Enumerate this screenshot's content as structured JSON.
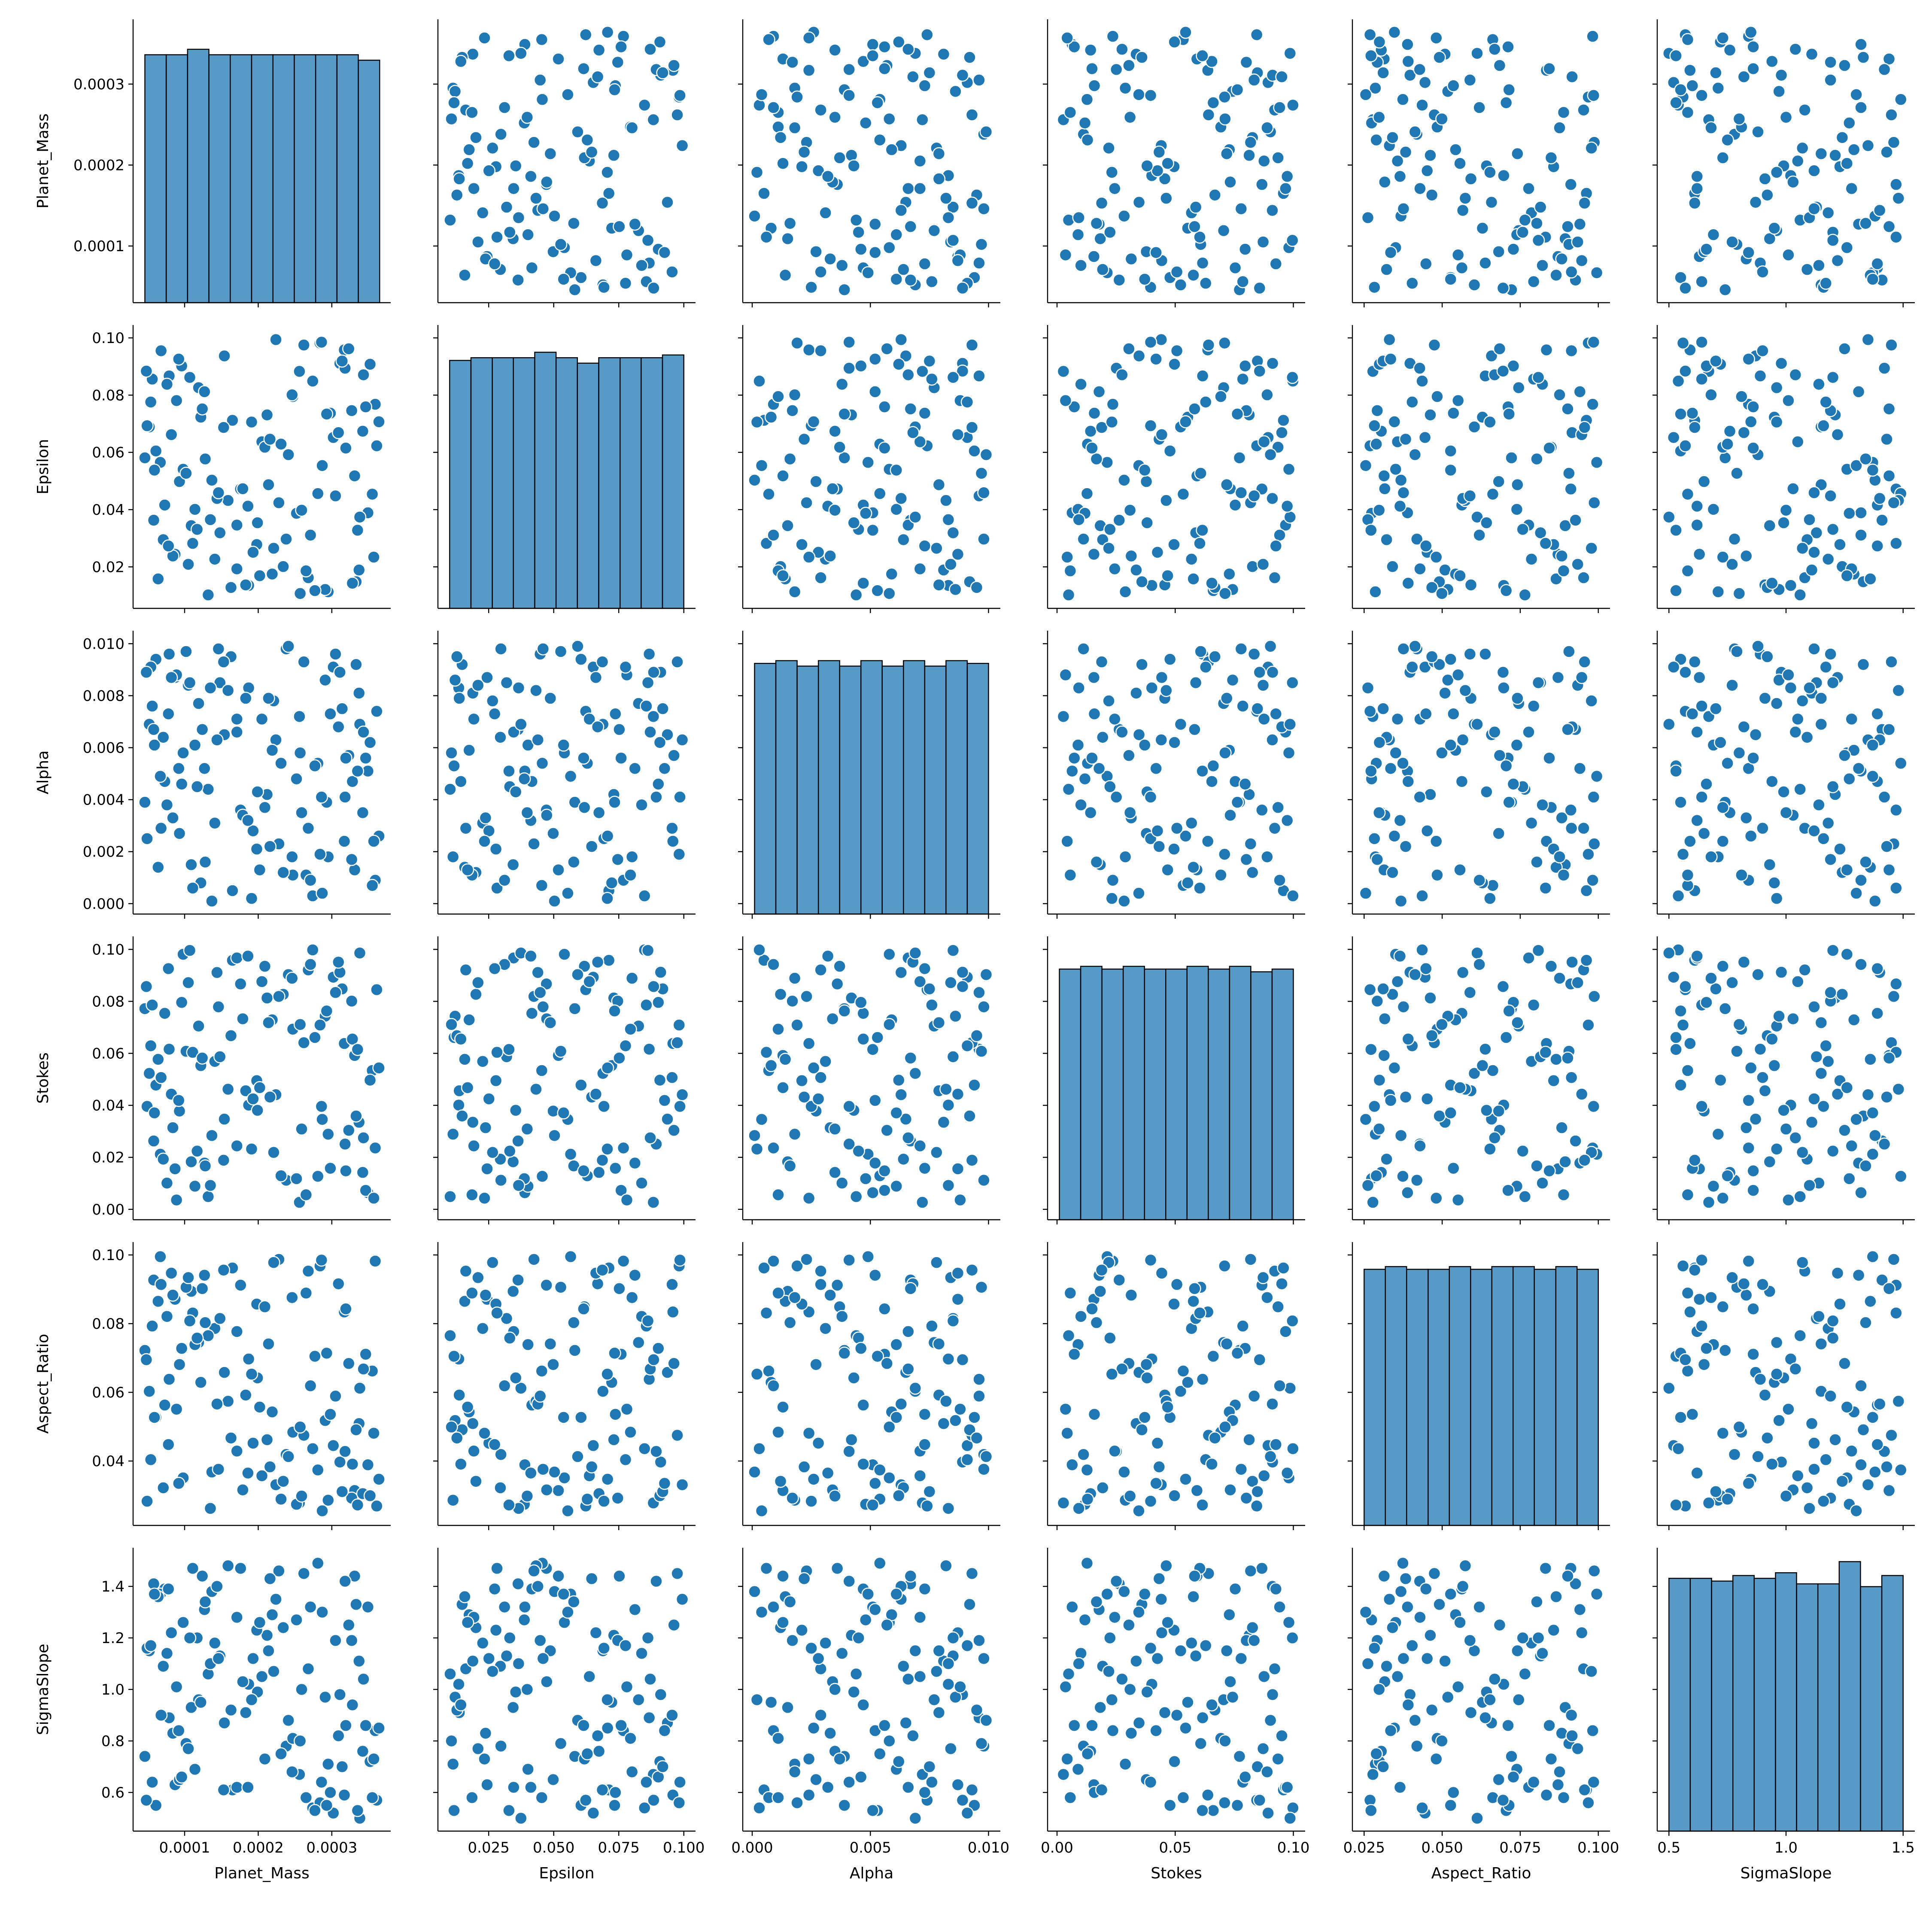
{
  "chart_data": {
    "type": "pairplot",
    "color": "#1f77b4",
    "variables": [
      {
        "name": "Planet_Mass",
        "lim": [
          3e-05,
          0.00038
        ],
        "ticks": [
          0.0001,
          0.0002,
          0.0003
        ],
        "bins": [
          4.6e-05,
          7.5e-05,
          0.000104,
          0.000133,
          0.000162,
          0.000191,
          0.00022,
          0.000249,
          0.000278,
          0.000307,
          0.000336,
          0.000365
        ],
        "counts": [
          91,
          91,
          93,
          91,
          91,
          91,
          91,
          91,
          91,
          91,
          89
        ],
        "count_lim": [
          0,
          104
        ]
      },
      {
        "name": "Epsilon",
        "lim": [
          0.0055,
          0.1045
        ],
        "ticks": [
          0.02,
          0.04,
          0.06,
          0.08,
          {
            "value": 0.1,
            "label": "0.10"
          }
        ],
        "xticks": [
          0.025,
          {
            "value": 0.05,
            "label": "0.050"
          },
          0.075,
          {
            "value": 0.1,
            "label": "0.100"
          }
        ],
        "bins": [
          0.01,
          0.0182,
          0.0264,
          0.0345,
          0.0427,
          0.0509,
          0.0591,
          0.0673,
          0.0755,
          0.0836,
          0.0918,
          0.1
        ],
        "counts": [
          91,
          92,
          92,
          92,
          94,
          92,
          90,
          92,
          92,
          92,
          93
        ],
        "count_lim": [
          0,
          104
        ]
      },
      {
        "name": "Alpha",
        "lim": [
          -0.0004,
          0.0105
        ],
        "ticks": [
          {
            "value": 0,
            "label": "0.000"
          },
          0.002,
          0.004,
          0.006,
          0.008,
          {
            "value": 0.01,
            "label": "0.010"
          }
        ],
        "xticks": [
          {
            "value": 0,
            "label": "0.000"
          },
          0.005,
          {
            "value": 0.01,
            "label": "0.010"
          }
        ],
        "bins": [
          0.0001,
          0.001,
          0.0019,
          0.0028,
          0.0037,
          0.0046,
          0.0055,
          0.0064,
          0.0073,
          0.0082,
          0.0091,
          0.01
        ],
        "counts": [
          92,
          93,
          91,
          93,
          91,
          93,
          91,
          93,
          91,
          93,
          92
        ],
        "count_lim": [
          0,
          104
        ]
      },
      {
        "name": "Stokes",
        "lim": [
          -0.004,
          0.105
        ],
        "ticks": [
          {
            "value": 0,
            "label": "0.00"
          },
          0.02,
          0.04,
          0.06,
          0.08,
          {
            "value": 0.1,
            "label": "0.10"
          }
        ],
        "xticks": [
          {
            "value": 0,
            "label": "0.00"
          },
          0.05,
          {
            "value": 0.1,
            "label": "0.10"
          }
        ],
        "bins": [
          0.001,
          0.01,
          0.019,
          0.028,
          0.037,
          0.046,
          0.055,
          0.064,
          0.073,
          0.082,
          0.091,
          0.1
        ],
        "counts": [
          92,
          93,
          92,
          93,
          92,
          92,
          93,
          92,
          93,
          91,
          92
        ],
        "count_lim": [
          0,
          104
        ]
      },
      {
        "name": "Aspect_Ratio",
        "lim": [
          0.02125,
          0.10375
        ],
        "ticks": [
          0.04,
          0.06,
          0.08,
          {
            "value": 0.1,
            "label": "0.10"
          }
        ],
        "xticks": [
          0.025,
          {
            "value": 0.05,
            "label": "0.050"
          },
          0.075,
          {
            "value": 0.1,
            "label": "0.100"
          }
        ],
        "bins": [
          0.025,
          0.0318,
          0.0386,
          0.0455,
          0.0523,
          0.0591,
          0.0659,
          0.0727,
          0.0795,
          0.0864,
          0.0932,
          0.1
        ],
        "counts": [
          94,
          95,
          94,
          94,
          95,
          94,
          95,
          95,
          94,
          95,
          94
        ],
        "count_lim": [
          0,
          104
        ]
      },
      {
        "name": "SigmaSlope",
        "lim": [
          0.45,
          1.55
        ],
        "ticks": [
          0.6,
          0.8,
          {
            "value": 1,
            "label": "1.0"
          },
          1.2,
          1.4
        ],
        "xticks": [
          0.5,
          {
            "value": 1,
            "label": "1.0"
          },
          1.5
        ],
        "bins": [
          0.5,
          0.591,
          0.682,
          0.773,
          0.864,
          0.955,
          1.045,
          1.136,
          1.227,
          1.318,
          1.409,
          1.5
        ],
        "counts": [
          91,
          91,
          90,
          92,
          91,
          93,
          89,
          89,
          97,
          88,
          92
        ],
        "count_lim": [
          0,
          102
        ]
      }
    ],
    "data": [
      [
        0.000212,
        0.0731,
        0.0042,
        0.0813,
        0.0462,
        1.21
      ],
      [
        8.7e-05,
        0.0244,
        0.0087,
        0.0156,
        0.0871,
        0.63
      ],
      [
        0.000331,
        0.0518,
        0.0013,
        0.0592,
        0.0314,
        1.44
      ],
      [
        0.000154,
        0.0937,
        0.0065,
        0.0347,
        0.0658,
        0.87
      ],
      [
        0.000268,
        0.0162,
        0.0029,
        0.0921,
        0.0953,
        1.08
      ],
      [
        6.1e-05,
        0.0605,
        0.0094,
        0.0478,
        0.0527,
        0.55
      ],
      [
        0.000349,
        0.0389,
        0.0051,
        0.0064,
        0.0389,
        1.32
      ],
      [
        0.000119,
        0.0826,
        0.0077,
        0.0705,
        0.0745,
        0.96
      ],
      [
        0.000295,
        0.0113,
        0.0018,
        0.0289,
        0.0286,
        0.71
      ],
      [
        0.000176,
        0.0472,
        0.0036,
        0.0867,
        0.0912,
        1.47
      ],
      [
        5.2e-05,
        0.0689,
        0.0069,
        0.0523,
        0.0603,
        1.15
      ],
      [
        0.000238,
        0.0297,
        0.0098,
        0.0112,
        0.0419,
        0.78
      ],
      [
        0.000317,
        0.0958,
        0.0024,
        0.0638,
        0.0834,
        0.59
      ],
      [
        9.8e-05,
        0.0541,
        0.0058,
        0.0981,
        0.0351,
        1.26
      ],
      [
        0.000187,
        0.0135,
        0.0083,
        0.0401,
        0.0697,
        1.02
      ],
      [
        0.000359,
        0.0768,
        0.0009,
        0.0236,
        0.0982,
        0.84
      ],
      [
        7.3e-05,
        0.0416,
        0.0047,
        0.0754,
        0.0563,
        1.39
      ],
      [
        0.000256,
        0.0883,
        0.0072,
        0.0027,
        0.0278,
        0.67
      ],
      [
        0.000141,
        0.0227,
        0.0031,
        0.0569,
        0.0786,
        1.18
      ],
      [
        0.000302,
        0.0652,
        0.0091,
        0.0893,
        0.0445,
        0.52
      ],
      [
        0.000109,
        0.0344,
        0.0015,
        0.0183,
        0.0894,
        0.93
      ],
      [
        0.000224,
        0.0994,
        0.0063,
        0.0441,
        0.0331,
        1.35
      ],
      [
        4.6e-05,
        0.0581,
        0.0039,
        0.0772,
        0.0722,
        0.74
      ],
      [
        0.000337,
        0.0189,
        0.0081,
        0.0335,
        0.0509,
        1.11
      ],
      [
        0.000165,
        0.0712,
        0.0005,
        0.0958,
        0.0962,
        0.61
      ],
      [
        0.000281,
        0.0456,
        0.0054,
        0.0127,
        0.0374,
        1.49
      ],
      [
        7.9e-05,
        0.0867,
        0.0096,
        0.0616,
        0.0638,
        0.89
      ],
      [
        0.000198,
        0.0278,
        0.0021,
        0.0495,
        0.0857,
        1.23
      ],
      [
        0.000361,
        0.0623,
        0.0074,
        0.0845,
        0.0269,
        0.57
      ],
      [
        0.000132,
        0.0102,
        0.0044,
        0.0049,
        0.0765,
        1.06
      ],
      [
        0.000247,
        0.0795,
        0.0011,
        0.0693,
        0.0484,
        0.81
      ],
      [
        5.8e-05,
        0.0363,
        0.0067,
        0.0263,
        0.0927,
        1.41
      ],
      [
        0.000311,
        0.0911,
        0.0089,
        0.0912,
        0.0397,
        0.98
      ],
      [
        9.3e-05,
        0.0498,
        0.0027,
        0.0378,
        0.0681,
        0.65
      ],
      [
        0.000219,
        0.0175,
        0.0059,
        0.0729,
        0.0543,
        1.29
      ],
      [
        0.000342,
        0.0674,
        0.0035,
        0.0142,
        0.0305,
        0.76
      ],
      [
        0.000148,
        0.0319,
        0.0085,
        0.0587,
        0.0815,
        1.13
      ],
      [
        0.000274,
        0.0849,
        0.0003,
        0.0998,
        0.0436,
        0.54
      ],
      [
        6.7e-05,
        0.0565,
        0.0049,
        0.0212,
        0.0995,
        1.37
      ],
      [
        0.000183,
        0.0137,
        0.0079,
        0.0456,
        0.0592,
        0.91
      ],
      [
        0.000327,
        0.0746,
        0.0017,
        0.0801,
        0.0292,
        1.19
      ],
      [
        0.000114,
        0.0401,
        0.0061,
        0.0089,
        0.0739,
        0.69
      ],
      [
        0.000262,
        0.0975,
        0.0093,
        0.0641,
        0.0475,
        1.45
      ],
      [
        8.4e-05,
        0.0238,
        0.0033,
        0.0314,
        0.0883,
        0.83
      ],
      [
        0.000205,
        0.0637,
        0.0071,
        0.0876,
        0.0357,
        1.05
      ],
      [
        0.000355,
        0.0454,
        0.0007,
        0.0534,
        0.0662,
        0.58
      ],
      [
        0.000127,
        0.0812,
        0.0052,
        0.0178,
        0.0941,
        1.31
      ],
      [
        0.000291,
        0.0121,
        0.0086,
        0.0743,
        0.0518,
        0.97
      ],
      [
        4.9e-05,
        0.0693,
        0.0025,
        0.0396,
        0.0283,
        1.16
      ],
      [
        0.000171,
        0.0346,
        0.0066,
        0.0967,
        0.0777,
        0.62
      ],
      [
        0.000318,
        0.0894,
        0.0041,
        0.0251,
        0.0428,
        1.42
      ],
      [
        0.000102,
        0.0527,
        0.0097,
        0.0608,
        0.0906,
        0.79
      ],
      [
        0.000234,
        0.0201,
        0.0012,
        0.0827,
        0.0341,
        1.24
      ],
      [
        0.000346,
        0.0759,
        0.0056,
        0.0073,
        0.0711,
        0.86
      ],
      [
        0.000159,
        0.0432,
        0.0082,
        0.0462,
        0.0574,
        1.48
      ],
      [
        0.000284,
        0.0982,
        0.0019,
        0.0709,
        0.0968,
        0.56
      ],
      [
        7.1e-05,
        0.0295,
        0.0064,
        0.0193,
        0.0322,
        1.09
      ],
      [
        0.000209,
        0.0618,
        0.0037,
        0.0935,
        0.0849,
        0.73
      ],
      [
        0.000333,
        0.0148,
        0.0092,
        0.0359,
        0.0491,
        1.33
      ],
      [
        0.000122,
        0.0723,
        0.0008,
        0.0553,
        0.0629,
        0.95
      ],
      [
        0.000252,
        0.0387,
        0.0048,
        0.0118,
        0.0274,
        1.27
      ],
      [
        5.6e-05,
        0.0856,
        0.0076,
        0.0786,
        0.0793,
        0.64
      ],
      [
        0.000193,
        0.0251,
        0.0028,
        0.0425,
        0.0452,
        1.12
      ],
      [
        0.000309,
        0.0669,
        0.0068,
        0.0951,
        0.0916,
        0.82
      ],
      [
        0.000137,
        0.0503,
        0.0001,
        0.0284,
        0.0368,
        1.38
      ],
      [
        0.000277,
        0.0117,
        0.0053,
        0.0661,
        0.0705,
        0.53
      ],
      [
        8.9e-05,
        0.0781,
        0.0088,
        0.0036,
        0.0551,
        1.01
      ],
      [
        0.000228,
        0.0424,
        0.0023,
        0.0819,
        0.0987,
        1.46
      ],
      [
        0.000352,
        0.0908,
        0.0062,
        0.0497,
        0.0299,
        0.72
      ],
      [
        0.000117,
        0.0331,
        0.0045,
        0.0224,
        0.0758,
        1.2
      ],
      [
        0.000241,
        0.0592,
        0.0099,
        0.0903,
        0.0413,
        0.88
      ],
      [
        6.4e-05,
        0.0158,
        0.0014,
        0.0577,
        0.0865,
        1.36
      ],
      [
        0.000298,
        0.0737,
        0.0073,
        0.0158,
        0.0536,
        0.6
      ],
      [
        0.000179,
        0.0473,
        0.0034,
        0.0733,
        0.0316,
        1.03
      ],
      [
        0.000323,
        0.0962,
        0.0057,
        0.0304,
        0.0684,
        1.25
      ],
      [
        0.000105,
        0.0209,
        0.0084,
        0.0872,
        0.0934,
        0.77
      ],
      [
        0.000216,
        0.0646,
        0.0022,
        0.0432,
        0.0383,
        1.43
      ],
      [
        0.000338,
        0.0374,
        0.0069,
        0.0986,
        0.0612,
        0.5
      ],
      [
        7.6e-05,
        0.0838,
        0.0038,
        0.0101,
        0.0821,
        1.14
      ],
      [
        0.000163,
        0.0128,
        0.0095,
        0.0668,
        0.0467,
        0.92
      ],
      [
        0.000287,
        0.0554,
        0.0004,
        0.0346,
        0.0255,
        1.3
      ],
      [
        9.6e-05,
        0.0902,
        0.0046,
        0.0796,
        0.0728,
        0.66
      ],
      [
        0.000221,
        0.0265,
        0.0078,
        0.0219,
        0.0978,
        1.07
      ],
      [
        0.000364,
        0.0707,
        0.0026,
        0.0544,
        0.0347,
        0.85
      ],
      [
        0.000144,
        0.0439,
        0.0063,
        0.0911,
        0.0566,
        1.4
      ],
      [
        0.000265,
        0.0186,
        0.0011,
        0.0056,
        0.0889,
        0.58
      ],
      [
        5.4e-05,
        0.0776,
        0.0091,
        0.0629,
        0.0404,
        1.17
      ],
      [
        0.000199,
        0.0354,
        0.0043,
        0.0381,
        0.0642,
        0.99
      ],
      [
        0.000314,
        0.0919,
        0.0075,
        0.0848,
        0.0311,
        0.7
      ],
      [
        0.000128,
        0.0577,
        0.0016,
        0.0167,
        0.0803,
        1.34
      ],
      [
        0.000257,
        0.0107,
        0.0058,
        0.0711,
        0.0499,
        0.8
      ],
      [
        8.2e-05,
        0.0662,
        0.0087,
        0.0443,
        0.0947,
        1.22
      ],
      [
        0.000186,
        0.0412,
        0.0032,
        0.0974,
        0.0365,
        0.62
      ],
      [
        0.000343,
        0.0871,
        0.0066,
        0.0275,
        0.0668,
        1.04
      ],
      [
        0.000111,
        0.0282,
        0.0006,
        0.0604,
        0.0831,
        1.47
      ],
      [
        0.000231,
        0.0629,
        0.0054,
        0.0129,
        0.0289,
        0.75
      ],
      [
        0.000305,
        0.0448,
        0.0096,
        0.0834,
        0.0589,
        1.19
      ],
      [
        6.8e-05,
        0.0955,
        0.0029,
        0.0507,
        0.0914,
        0.9
      ],
      [
        0.000171,
        0.0193,
        0.0071,
        0.0244,
        0.0429,
        1.28
      ],
      [
        0.000293,
        0.0734,
        0.0039,
        0.0763,
        0.0714,
        0.55
      ],
      [
        0.000135,
        0.0365,
        0.0083,
        0.0092,
        0.0262,
        1.1
      ],
      [
        0.000246,
        0.0801,
        0.0018,
        0.0889,
        0.0876,
        0.68
      ],
      [
        5.9e-05,
        0.0538,
        0.0061,
        0.0371,
        0.0527,
        1.37
      ],
      [
        0.000328,
        0.0143,
        0.0047,
        0.0655,
        0.0391,
        0.94
      ],
      [
        0.000153,
        0.0687,
        0.0093,
        0.0189,
        0.0956,
        0.61
      ],
      [
        0.000271,
        0.0311,
        0.0009,
        0.0942,
        0.0619,
        1.32
      ],
      [
        9.2e-05,
        0.0926,
        0.0052,
        0.0419,
        0.0335,
        0.84
      ],
      [
        0.000214,
        0.0487,
        0.0079,
        0.0718,
        0.0741,
        1.15
      ],
      [
        0.000357,
        0.0234,
        0.0024,
        0.0043,
        0.0481,
        0.73
      ],
      [
        0.000124,
        0.0752,
        0.0067,
        0.0582,
        0.0902,
        1.44
      ],
      [
        0.000259,
        0.0398,
        0.0035,
        0.0309,
        0.0298,
        1
      ],
      [
        4.8e-05,
        0.0884,
        0.0089,
        0.0857,
        0.0695,
        0.57
      ],
      [
        0.000202,
        0.0169,
        0.0013,
        0.0468,
        0.0557,
        1.26
      ],
      [
        0.000319,
        0.0615,
        0.0056,
        0.0148,
        0.0843,
        0.86
      ],
      [
        0.000146,
        0.0459,
        0.0098,
        0.0779,
        0.0376,
        1.12
      ],
      [
        0.000286,
        0.0985,
        0.0041,
        0.0396,
        0.0985,
        0.64
      ],
      [
        7.8e-05,
        0.0273,
        0.0073,
        0.0926,
        0.0448,
        1.39
      ],
      [
        0.000191,
        0.0706,
        0.0002,
        0.0232,
        0.0653,
        0.96
      ],
      [
        0.000335,
        0.0328,
        0.0051,
        0.0615,
        0.0272,
        0.53
      ],
      [
        0.000107,
        0.0862,
        0.0085,
        0.0996,
        0.0808,
        1.2
      ]
    ]
  }
}
